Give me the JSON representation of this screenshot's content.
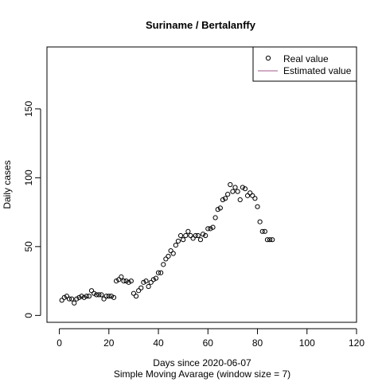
{
  "chart_data": {
    "type": "scatter",
    "title": "Suriname / Bertalanffy",
    "xlabel": "Days since 2020-06-07",
    "xlabel2": "Simple Moving Avarage (window size = 7)",
    "ylabel": "Daily cases",
    "xlim": [
      -5,
      120
    ],
    "ylim": [
      -5,
      195
    ],
    "xticks": [
      0,
      20,
      40,
      60,
      80,
      100,
      120
    ],
    "yticks": [
      0,
      50,
      100,
      150
    ],
    "legend": {
      "position": "top-right",
      "entries": [
        {
          "label": "Real value",
          "symbol": "open-circle"
        },
        {
          "label": "Estimated value",
          "symbol": "line",
          "color": "#a0588a"
        }
      ]
    },
    "series": [
      {
        "name": "Real value",
        "style": "open-circle",
        "color": "#000000",
        "x": [
          1,
          2,
          3,
          4,
          5,
          6,
          7,
          8,
          9,
          10,
          11,
          12,
          13,
          14,
          15,
          16,
          17,
          18,
          19,
          20,
          21,
          22,
          23,
          24,
          25,
          26,
          27,
          28,
          29,
          30,
          31,
          32,
          33,
          34,
          35,
          36,
          37,
          38,
          39,
          40,
          41,
          42,
          43,
          44,
          45,
          46,
          47,
          48,
          49,
          50,
          51,
          52,
          53,
          54,
          55,
          56,
          57,
          58,
          59,
          60,
          61,
          62,
          63,
          64,
          65,
          66,
          67,
          68,
          69,
          70,
          71,
          72,
          73,
          74,
          75,
          76,
          77,
          78,
          79,
          80,
          81,
          82,
          83,
          84,
          85,
          86
        ],
        "y": [
          11,
          13,
          14,
          12,
          12,
          9,
          12,
          13,
          14,
          13,
          14,
          14,
          18,
          16,
          15,
          15,
          15,
          12,
          14,
          14,
          14,
          13,
          25,
          26,
          28,
          25,
          25,
          24,
          25,
          16,
          14,
          18,
          20,
          24,
          25,
          21,
          24,
          26,
          27,
          31,
          31,
          37,
          41,
          43,
          47,
          45,
          51,
          54,
          58,
          55,
          58,
          61,
          58,
          56,
          58,
          58,
          55,
          59,
          58,
          63,
          63,
          64,
          71,
          77,
          78,
          84,
          85,
          88,
          95,
          90,
          93,
          90,
          84,
          93,
          92,
          87,
          89,
          87,
          85,
          79,
          68,
          61,
          61,
          55,
          55,
          55
        ]
      }
    ]
  }
}
